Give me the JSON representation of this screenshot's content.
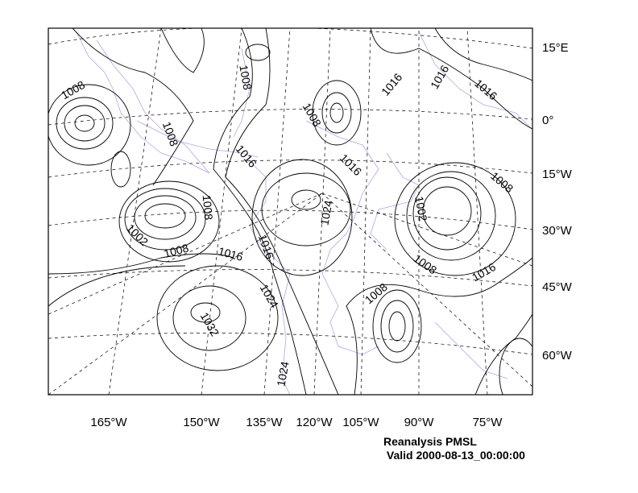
{
  "caption": {
    "title": "Reanalysis PMSL",
    "valid": " Valid 2000-08-13_00:00:00"
  },
  "colors": {
    "contour": "#000000",
    "coastline": "#b9a3e0",
    "grid": "#000000"
  },
  "lat_labels": [
    "15°E",
    "0°",
    "15°W",
    "30°W",
    "45°W",
    "60°W"
  ],
  "lon_labels": [
    "165°W",
    "150°W",
    "135°W",
    "120°W",
    "105°W",
    "90°W",
    "75°W"
  ],
  "contour_labels": [
    "1008",
    "1008",
    "1008",
    "1016",
    "1008",
    "1002",
    "1008",
    "1016",
    "1016",
    "1024",
    "1032",
    "1024",
    "1008",
    "1016",
    "1024",
    "1016",
    "1016",
    "1016",
    "1008",
    "1002",
    "1008",
    "1016",
    "1008"
  ]
}
